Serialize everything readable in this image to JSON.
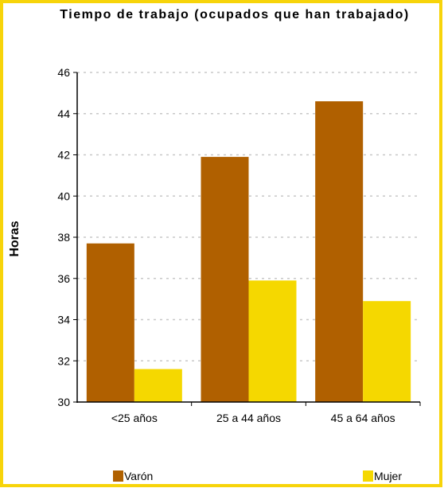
{
  "colors": {
    "border": "#f7d40a",
    "grid": "#c8c8c8"
  },
  "chart_data": {
    "type": "bar",
    "title": "Tiempo de trabajo  (ocupados que han trabajado)",
    "ylabel": "Horas",
    "xlabel": "",
    "categories": [
      "<25 años",
      "25 a 44 años",
      "45 a 64 años"
    ],
    "series": [
      {
        "name": "Varón",
        "color": "#b06000",
        "values": [
          37.7,
          41.9,
          44.6
        ]
      },
      {
        "name": "Mujer",
        "color": "#f5d800",
        "values": [
          31.6,
          35.9,
          34.9
        ]
      }
    ],
    "ylim": [
      30,
      46
    ],
    "yticks": [
      30,
      32,
      34,
      36,
      38,
      40,
      42,
      44,
      46
    ],
    "grid": true,
    "legend_position": "bottom"
  }
}
